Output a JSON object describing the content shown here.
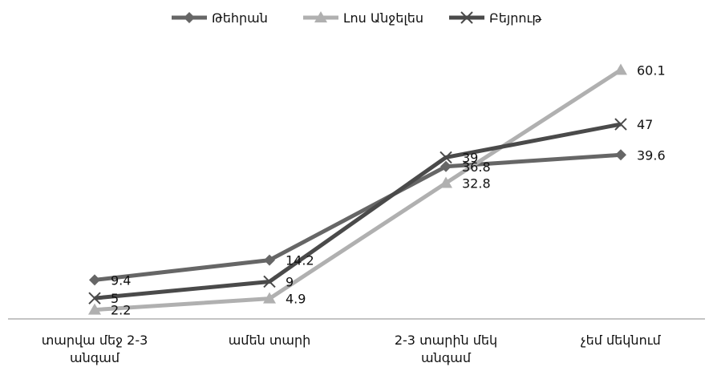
{
  "chart_data": {
    "type": "line",
    "categories": [
      [
        "տարվա մեջ 2-3",
        "անգամ"
      ],
      [
        "ամեն տարի"
      ],
      [
        "2-3 տարին մեկ",
        "անգամ"
      ],
      [
        "չեմ մեկնում"
      ]
    ],
    "series": [
      {
        "name": "Թեհրան",
        "values": [
          9.4,
          14.2,
          36.8,
          39.6
        ],
        "color": "#666666",
        "marker": "diamond"
      },
      {
        "name": "Լոս Անջելես",
        "values": [
          2.2,
          4.9,
          32.8,
          60.1
        ],
        "color": "#b0b0b0",
        "marker": "triangle"
      },
      {
        "name": "Բեյրութ",
        "values": [
          5,
          9,
          39,
          47
        ],
        "color": "#4a4a4a",
        "marker": "x"
      }
    ],
    "title": "",
    "xlabel": "",
    "ylabel": "",
    "ylim": [
      0,
      65
    ],
    "grid": false,
    "legend": "top-center"
  }
}
